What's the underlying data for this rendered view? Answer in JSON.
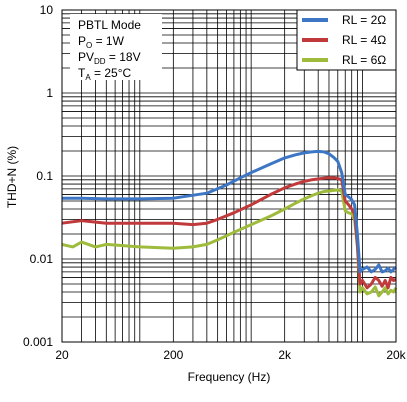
{
  "chart_data": {
    "type": "line",
    "xlabel": "Frequency (Hz)",
    "ylabel": "THD+N (%)",
    "x_scale": "log",
    "y_scale": "log",
    "xlim": [
      20,
      20000
    ],
    "ylim": [
      0.001,
      10
    ],
    "grid": true,
    "legend_position": "top-right",
    "x_ticks": [
      {
        "value": 20,
        "label": "20"
      },
      {
        "value": 200,
        "label": "200"
      },
      {
        "value": 2000,
        "label": "2k"
      },
      {
        "value": 20000,
        "label": "20k"
      }
    ],
    "y_ticks": [
      {
        "value": 10,
        "label": "10"
      },
      {
        "value": 1,
        "label": "1"
      },
      {
        "value": 0.1,
        "label": "0.1"
      },
      {
        "value": 0.01,
        "label": "0.01"
      },
      {
        "value": 0.001,
        "label": "0.001"
      }
    ],
    "annotation": {
      "line1": "PBTL Mode",
      "line2_main": "P",
      "line2_sub": "O",
      "line2_rest": " = 1W",
      "line3_main": "PV",
      "line3_sub": "DD",
      "line3_rest": " = 18V",
      "line4_main": "T",
      "line4_sub": "A",
      "line4_rest": " = 25°C"
    },
    "series": [
      {
        "name": "RL = 2Ω",
        "color": "#3d76c4",
        "x": [
          20,
          30,
          50,
          100,
          200,
          400,
          600,
          800,
          1000,
          1500,
          2000,
          2500,
          3000,
          3500,
          4000,
          4500,
          5000,
          5500,
          6000,
          6500,
          7000,
          7500,
          8000,
          8500,
          9000,
          9500,
          10000,
          11000,
          12000,
          13000,
          14000,
          15000,
          16000,
          17000,
          18000,
          19000,
          20000
        ],
        "y": [
          0.054,
          0.054,
          0.053,
          0.053,
          0.054,
          0.062,
          0.078,
          0.095,
          0.11,
          0.14,
          0.165,
          0.18,
          0.19,
          0.195,
          0.198,
          0.195,
          0.185,
          0.168,
          0.15,
          0.11,
          0.06,
          0.056,
          0.052,
          0.045,
          0.02,
          0.007,
          0.0075,
          0.008,
          0.007,
          0.0075,
          0.0085,
          0.007,
          0.0072,
          0.0078,
          0.007,
          0.0075,
          0.008
        ]
      },
      {
        "name": "RL = 4Ω",
        "color": "#c0393b",
        "x": [
          20,
          30,
          50,
          100,
          200,
          300,
          400,
          500,
          700,
          1000,
          1500,
          2000,
          2500,
          3000,
          3500,
          4000,
          4500,
          5000,
          5500,
          6000,
          6500,
          7000,
          7500,
          8000,
          8500,
          9000,
          9500,
          10000,
          11000,
          12000,
          13000,
          14000,
          15000,
          16000,
          17000,
          18000,
          19000,
          20000
        ],
        "y": [
          0.027,
          0.029,
          0.027,
          0.027,
          0.027,
          0.026,
          0.027,
          0.03,
          0.036,
          0.045,
          0.06,
          0.072,
          0.08,
          0.086,
          0.09,
          0.092,
          0.094,
          0.095,
          0.095,
          0.093,
          0.09,
          0.05,
          0.045,
          0.04,
          0.035,
          0.015,
          0.005,
          0.0055,
          0.0045,
          0.005,
          0.006,
          0.0055,
          0.0047,
          0.0055,
          0.0045,
          0.006,
          0.0055,
          0.0057
        ]
      },
      {
        "name": "RL = 6Ω",
        "color": "#9ebb3b",
        "x": [
          20,
          25,
          30,
          40,
          50,
          100,
          200,
          300,
          400,
          500,
          700,
          1000,
          1500,
          2000,
          2500,
          3000,
          3500,
          4000,
          4500,
          5000,
          5500,
          6000,
          6500,
          7000,
          7500,
          8000,
          8500,
          9000,
          9500,
          10000,
          11000,
          12000,
          13000,
          14000,
          15000,
          16000,
          17000,
          18000,
          19000,
          20000
        ],
        "y": [
          0.015,
          0.014,
          0.016,
          0.014,
          0.015,
          0.014,
          0.0135,
          0.014,
          0.015,
          0.017,
          0.021,
          0.026,
          0.033,
          0.04,
          0.047,
          0.053,
          0.058,
          0.062,
          0.065,
          0.066,
          0.067,
          0.068,
          0.066,
          0.038,
          0.036,
          0.035,
          0.03,
          0.014,
          0.004,
          0.0045,
          0.0038,
          0.004,
          0.0046,
          0.0036,
          0.004,
          0.0045,
          0.0038,
          0.0042,
          0.004,
          0.0045
        ]
      }
    ]
  }
}
